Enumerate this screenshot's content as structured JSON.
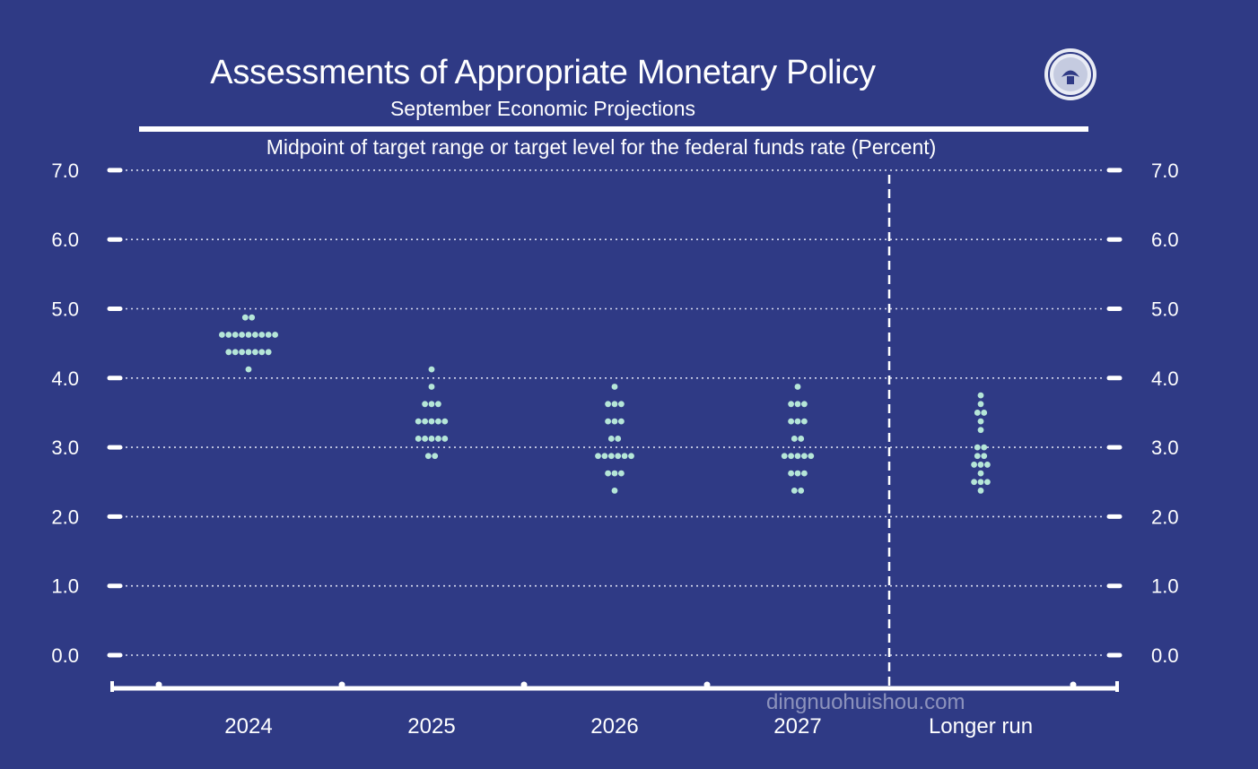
{
  "header": {
    "title": "Assessments of Appropriate Monetary Policy",
    "subtitle": "September Economic Projections"
  },
  "watermark": "dingnuohuishou.com",
  "colors": {
    "background": "#2f3a85",
    "dot": "#b5e6d8",
    "axis": "#ffffff"
  },
  "chart_data": {
    "type": "scatter",
    "title": "Midpoint of target range or target level for the federal funds rate (Percent)",
    "categories": [
      "2024",
      "2025",
      "2026",
      "2027",
      "Longer run"
    ],
    "y_ticks": [
      "0.0",
      "1.0",
      "2.0",
      "3.0",
      "4.0",
      "5.0",
      "6.0",
      "7.0"
    ],
    "ylim": [
      -0.5,
      7.0
    ],
    "grid": true,
    "series": [
      {
        "category": "2024",
        "points": [
          {
            "y": 4.875,
            "count": 2
          },
          {
            "y": 4.625,
            "count": 9
          },
          {
            "y": 4.375,
            "count": 7
          },
          {
            "y": 4.125,
            "count": 1
          }
        ]
      },
      {
        "category": "2025",
        "points": [
          {
            "y": 4.125,
            "count": 1
          },
          {
            "y": 3.875,
            "count": 1
          },
          {
            "y": 3.625,
            "count": 3
          },
          {
            "y": 3.375,
            "count": 5
          },
          {
            "y": 3.125,
            "count": 5
          },
          {
            "y": 2.875,
            "count": 2
          }
        ]
      },
      {
        "category": "2026",
        "points": [
          {
            "y": 3.875,
            "count": 1
          },
          {
            "y": 3.625,
            "count": 3
          },
          {
            "y": 3.375,
            "count": 3
          },
          {
            "y": 3.125,
            "count": 2
          },
          {
            "y": 2.875,
            "count": 6
          },
          {
            "y": 2.625,
            "count": 3
          },
          {
            "y": 2.375,
            "count": 1
          }
        ]
      },
      {
        "category": "2027",
        "points": [
          {
            "y": 3.875,
            "count": 1
          },
          {
            "y": 3.625,
            "count": 3
          },
          {
            "y": 3.375,
            "count": 3
          },
          {
            "y": 3.125,
            "count": 2
          },
          {
            "y": 2.875,
            "count": 5
          },
          {
            "y": 2.625,
            "count": 3
          },
          {
            "y": 2.375,
            "count": 2
          }
        ]
      },
      {
        "category": "Longer run",
        "points": [
          {
            "y": 3.75,
            "count": 1
          },
          {
            "y": 3.625,
            "count": 1
          },
          {
            "y": 3.5,
            "count": 2
          },
          {
            "y": 3.375,
            "count": 1
          },
          {
            "y": 3.25,
            "count": 1
          },
          {
            "y": 3.0,
            "count": 2
          },
          {
            "y": 2.875,
            "count": 2
          },
          {
            "y": 2.75,
            "count": 3
          },
          {
            "y": 2.625,
            "count": 1
          },
          {
            "y": 2.5,
            "count": 3
          },
          {
            "y": 2.375,
            "count": 1
          }
        ]
      }
    ]
  }
}
